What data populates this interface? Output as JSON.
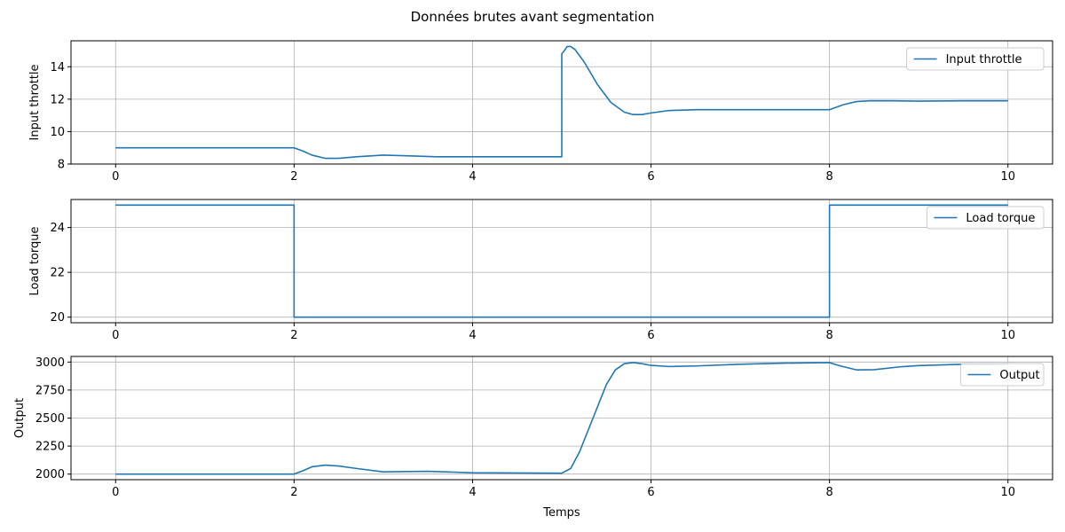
{
  "figure": {
    "title": "Données brutes avant segmentation"
  },
  "colors": {
    "series": "#1f77b4",
    "grid": "#b0b0b0",
    "axes": "#000000",
    "legend_border": "#cccccc"
  },
  "chart_data": [
    {
      "type": "line",
      "title": "",
      "xlabel": "",
      "ylabel": "Input throttle",
      "xlim": [
        -0.5,
        10.5
      ],
      "ylim": [
        8,
        15.6
      ],
      "xticks": [
        0,
        2,
        4,
        6,
        8,
        10
      ],
      "yticks": [
        8,
        10,
        12,
        14
      ],
      "grid": true,
      "legend": "top-right",
      "series": [
        {
          "name": "Input throttle",
          "x": [
            0,
            2.0,
            2.1,
            2.2,
            2.35,
            2.5,
            2.7,
            3.0,
            3.3,
            3.6,
            4.0,
            4.5,
            5.0,
            5.0,
            5.03,
            5.06,
            5.1,
            5.15,
            5.25,
            5.4,
            5.55,
            5.7,
            5.8,
            5.9,
            6.0,
            6.2,
            6.5,
            7.0,
            7.5,
            8.0,
            8.05,
            8.15,
            8.3,
            8.45,
            8.7,
            9.0,
            9.5,
            10.0
          ],
          "y": [
            9.0,
            9.0,
            8.8,
            8.55,
            8.35,
            8.35,
            8.45,
            8.55,
            8.5,
            8.45,
            8.45,
            8.45,
            8.45,
            14.8,
            15.0,
            15.25,
            15.25,
            15.05,
            14.3,
            12.9,
            11.8,
            11.2,
            11.05,
            11.05,
            11.15,
            11.3,
            11.35,
            11.35,
            11.35,
            11.35,
            11.45,
            11.65,
            11.85,
            11.9,
            11.9,
            11.88,
            11.9,
            11.9
          ]
        }
      ]
    },
    {
      "type": "line",
      "title": "",
      "xlabel": "",
      "ylabel": "Load torque",
      "xlim": [
        -0.5,
        10.5
      ],
      "ylim": [
        19.75,
        25.25
      ],
      "xticks": [
        0,
        2,
        4,
        6,
        8,
        10
      ],
      "yticks": [
        20,
        22,
        24
      ],
      "grid": true,
      "legend": "top-right",
      "series": [
        {
          "name": "Load torque",
          "x": [
            0,
            2.0,
            2.0,
            8.0,
            8.0,
            10.0
          ],
          "y": [
            25,
            25,
            20,
            20,
            25,
            25
          ]
        }
      ]
    },
    {
      "type": "line",
      "title": "",
      "xlabel": "Temps",
      "ylabel": "Output",
      "xlim": [
        -0.5,
        10.5
      ],
      "ylim": [
        1950,
        3050
      ],
      "xticks": [
        0,
        2,
        4,
        6,
        8,
        10
      ],
      "yticks": [
        2000,
        2250,
        2500,
        2750,
        3000
      ],
      "grid": true,
      "legend": "top-right",
      "series": [
        {
          "name": "Output",
          "x": [
            0,
            2.0,
            2.1,
            2.2,
            2.35,
            2.5,
            2.7,
            3.0,
            3.5,
            4.0,
            4.5,
            5.0,
            5.1,
            5.2,
            5.35,
            5.5,
            5.6,
            5.7,
            5.8,
            5.9,
            6.0,
            6.2,
            6.5,
            7.0,
            7.5,
            8.0,
            8.1,
            8.3,
            8.5,
            8.8,
            9.0,
            9.5,
            10.0
          ],
          "y": [
            2000,
            2000,
            2030,
            2065,
            2080,
            2072,
            2050,
            2020,
            2025,
            2012,
            2010,
            2008,
            2050,
            2200,
            2500,
            2800,
            2930,
            2985,
            2995,
            2985,
            2970,
            2960,
            2965,
            2980,
            2990,
            2995,
            2970,
            2930,
            2932,
            2958,
            2968,
            2980,
            2982
          ]
        }
      ]
    }
  ]
}
